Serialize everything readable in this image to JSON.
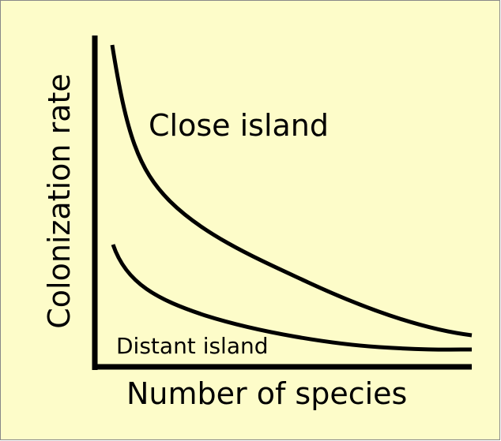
{
  "axes": {
    "y_label": "Colonization rate",
    "x_label": "Number of species"
  },
  "curves": [
    {
      "label": "Close island"
    },
    {
      "label": "Distant island"
    }
  ]
}
